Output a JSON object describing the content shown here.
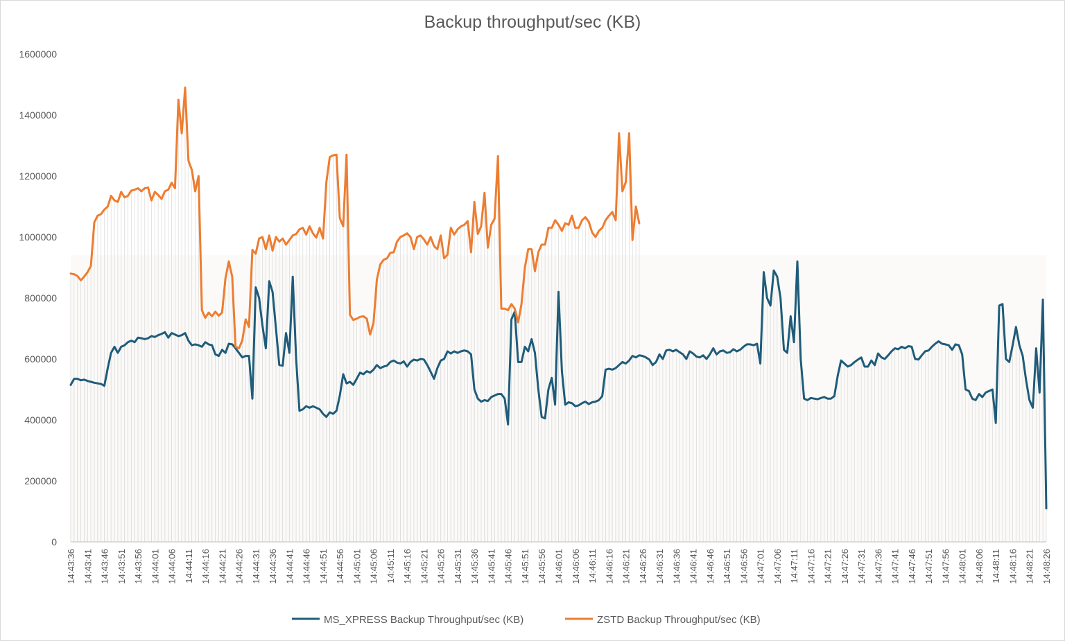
{
  "chart_data": {
    "type": "line",
    "title": "Backup throughput/sec (KB)",
    "xlabel": "",
    "ylabel": "",
    "ylim": [
      0,
      1600000
    ],
    "yticks": [
      0,
      200000,
      400000,
      600000,
      800000,
      1000000,
      1200000,
      1400000,
      1600000
    ],
    "ytick_labels": [
      "0",
      "200000",
      "400000",
      "600000",
      "800000",
      "1000000",
      "1200000",
      "1400000",
      "1600000"
    ],
    "x_start": "14:43:36",
    "x_end": "14:48:26",
    "x_step_seconds": 1,
    "xtick_labels": [
      "14:43:36",
      "14:43:41",
      "14:43:46",
      "14:43:51",
      "14:43:56",
      "14:44:01",
      "14:44:06",
      "14:44:11",
      "14:44:16",
      "14:44:21",
      "14:44:26",
      "14:44:31",
      "14:44:36",
      "14:44:41",
      "14:44:46",
      "14:44:51",
      "14:44:56",
      "14:45:01",
      "14:45:06",
      "14:45:11",
      "14:45:16",
      "14:45:21",
      "14:45:26",
      "14:45:31",
      "14:45:36",
      "14:45:41",
      "14:45:46",
      "14:45:51",
      "14:45:56",
      "14:46:01",
      "14:46:06",
      "14:46:11",
      "14:46:16",
      "14:46:21",
      "14:46:26",
      "14:46:31",
      "14:46:36",
      "14:46:41",
      "14:46:46",
      "14:46:51",
      "14:46:56",
      "14:47:01",
      "14:47:06",
      "14:47:11",
      "14:47:16",
      "14:47:21",
      "14:47:26",
      "14:47:31",
      "14:47:36",
      "14:47:41",
      "14:47:46",
      "14:47:51",
      "14:47:56",
      "14:48:01",
      "14:48:06",
      "14:48:11",
      "14:48:16",
      "14:48:21",
      "14:48:26"
    ],
    "grid": false,
    "legend": "bottom",
    "series": [
      {
        "name": "MS_XPRESS Backup Throughput/sec (KB)",
        "color": "#1f5c7a",
        "values": [
          515000,
          535000,
          535000,
          530000,
          532000,
          528000,
          525000,
          522000,
          520000,
          518000,
          512000,
          570000,
          620000,
          640000,
          620000,
          640000,
          645000,
          655000,
          660000,
          655000,
          670000,
          668000,
          665000,
          668000,
          675000,
          672000,
          678000,
          682000,
          688000,
          670000,
          685000,
          680000,
          675000,
          678000,
          685000,
          660000,
          645000,
          648000,
          645000,
          640000,
          655000,
          648000,
          645000,
          615000,
          610000,
          630000,
          620000,
          650000,
          648000,
          635000,
          620000,
          605000,
          610000,
          610000,
          470000,
          835000,
          800000,
          710000,
          635000,
          855000,
          820000,
          700000,
          580000,
          578000,
          685000,
          620000,
          870000,
          600000,
          430000,
          435000,
          445000,
          440000,
          445000,
          440000,
          435000,
          420000,
          410000,
          425000,
          420000,
          430000,
          480000,
          550000,
          520000,
          525000,
          515000,
          535000,
          555000,
          550000,
          560000,
          555000,
          565000,
          580000,
          570000,
          575000,
          578000,
          590000,
          595000,
          588000,
          585000,
          592000,
          575000,
          590000,
          598000,
          595000,
          600000,
          598000,
          580000,
          558000,
          535000,
          570000,
          595000,
          600000,
          625000,
          618000,
          625000,
          620000,
          625000,
          628000,
          625000,
          615000,
          500000,
          470000,
          460000,
          465000,
          462000,
          475000,
          480000,
          485000,
          485000,
          470000,
          385000,
          730000,
          755000,
          590000,
          590000,
          640000,
          625000,
          665000,
          620000,
          500000,
          410000,
          405000,
          500000,
          538000,
          450000,
          820000,
          560000,
          450000,
          458000,
          455000,
          445000,
          448000,
          455000,
          460000,
          452000,
          458000,
          460000,
          465000,
          478000,
          565000,
          568000,
          565000,
          570000,
          580000,
          590000,
          585000,
          595000,
          610000,
          605000,
          612000,
          610000,
          605000,
          598000,
          580000,
          590000,
          615000,
          600000,
          628000,
          630000,
          625000,
          630000,
          622000,
          615000,
          600000,
          625000,
          618000,
          608000,
          605000,
          612000,
          600000,
          615000,
          635000,
          615000,
          625000,
          628000,
          620000,
          622000,
          632000,
          625000,
          630000,
          640000,
          648000,
          648000,
          645000,
          650000,
          585000,
          885000,
          800000,
          775000,
          890000,
          870000,
          800000,
          630000,
          620000,
          740000,
          655000,
          920000,
          600000,
          470000,
          465000,
          472000,
          470000,
          468000,
          472000,
          475000,
          470000,
          470000,
          478000,
          545000,
          595000,
          585000,
          575000,
          580000,
          590000,
          598000,
          605000,
          575000,
          575000,
          595000,
          580000,
          618000,
          605000,
          600000,
          612000,
          625000,
          635000,
          632000,
          640000,
          635000,
          642000,
          640000,
          600000,
          598000,
          612000,
          625000,
          628000,
          640000,
          650000,
          658000,
          650000,
          648000,
          645000,
          630000,
          648000,
          645000,
          615000,
          500000,
          495000,
          470000,
          465000,
          485000,
          475000,
          490000,
          495000,
          500000,
          390000,
          775000,
          780000,
          600000,
          590000,
          645000,
          705000,
          645000,
          610000,
          530000,
          465000,
          440000,
          635000,
          490000,
          795000,
          110000
        ]
      },
      {
        "name": "ZSTD Backup Throughput/sec (KB)",
        "color": "#ed7d31",
        "values": [
          880000,
          878000,
          872000,
          858000,
          870000,
          885000,
          905000,
          1048000,
          1070000,
          1075000,
          1090000,
          1100000,
          1135000,
          1120000,
          1115000,
          1148000,
          1130000,
          1135000,
          1152000,
          1155000,
          1160000,
          1150000,
          1160000,
          1162000,
          1120000,
          1148000,
          1138000,
          1125000,
          1150000,
          1155000,
          1178000,
          1160000,
          1450000,
          1340000,
          1490000,
          1250000,
          1220000,
          1150000,
          1200000,
          760000,
          735000,
          752000,
          740000,
          755000,
          742000,
          752000,
          865000,
          920000,
          870000,
          640000,
          635000,
          660000,
          730000,
          705000,
          958000,
          945000,
          995000,
          1000000,
          960000,
          1005000,
          955000,
          1000000,
          985000,
          995000,
          975000,
          990000,
          1005000,
          1010000,
          1025000,
          1030000,
          1008000,
          1035000,
          1012000,
          998000,
          1030000,
          995000,
          1180000,
          1262000,
          1268000,
          1270000,
          1062000,
          1035000,
          1270000,
          745000,
          728000,
          732000,
          738000,
          740000,
          732000,
          680000,
          718000,
          860000,
          910000,
          925000,
          930000,
          948000,
          950000,
          985000,
          1000000,
          1005000,
          1012000,
          1000000,
          960000,
          1000000,
          1005000,
          992000,
          975000,
          1000000,
          970000,
          960000,
          1005000,
          930000,
          942000,
          1030000,
          1008000,
          1025000,
          1035000,
          1040000,
          1052000,
          950000,
          1115000,
          1010000,
          1035000,
          1145000,
          965000,
          1040000,
          1060000,
          1265000,
          765000,
          765000,
          760000,
          780000,
          765000,
          720000,
          780000,
          900000,
          960000,
          960000,
          888000,
          950000,
          975000,
          975000,
          1030000,
          1030000,
          1055000,
          1040000,
          1020000,
          1045000,
          1040000,
          1070000,
          1030000,
          1030000,
          1055000,
          1065000,
          1050000,
          1015000,
          1000000,
          1020000,
          1030000,
          1055000,
          1070000,
          1082000,
          1055000,
          1340000,
          1150000,
          1180000,
          1340000,
          990000,
          1100000,
          1045000
        ]
      }
    ]
  }
}
